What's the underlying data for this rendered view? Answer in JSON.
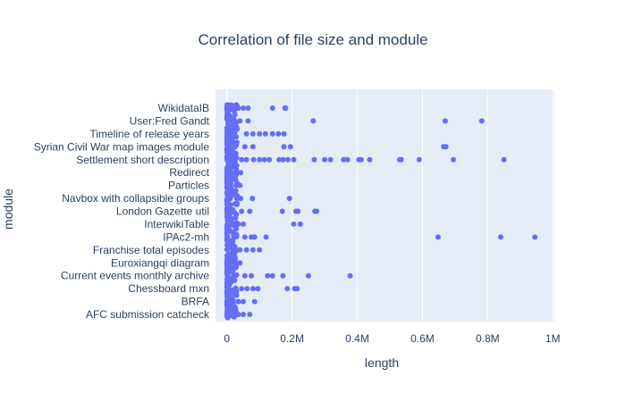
{
  "chart_data": {
    "type": "scatter",
    "title": "Correlation of file size and module",
    "xlabel": "length",
    "ylabel": "module",
    "xlim": [
      -35000,
      1005000
    ],
    "x_ticks": [
      {
        "value": 0,
        "label": "0"
      },
      {
        "value": 200000,
        "label": "0.2M"
      },
      {
        "value": 400000,
        "label": "0.4M"
      },
      {
        "value": 600000,
        "label": "0.6M"
      },
      {
        "value": 800000,
        "label": "0.8M"
      },
      {
        "value": 1000000,
        "label": "1M"
      }
    ],
    "categories": [
      "AFC submission catcheck",
      "BRFA",
      "Chessboard mxn",
      "Current events monthly archive",
      "Euroxiangqi diagram",
      "Franchise total episodes",
      "IPAc2-mh",
      "InterwikiTable",
      "London Gazette util",
      "Navbox with collapsible groups",
      "Particles",
      "Redirect",
      "Settlement short description",
      "Syrian Civil War map images module",
      "Timeline of release years",
      "User:Fred Gandt",
      "WikidataIB"
    ],
    "grid": true,
    "marker_color": "#636efa",
    "plot_bg": "#e5ecf6",
    "points": [
      {
        "module": "WikidataIB",
        "length": 140000
      },
      {
        "module": "WikidataIB",
        "length": 178000
      },
      {
        "module": "WikidataIB",
        "length": 180000
      },
      {
        "module": "WikidataIB",
        "length": 65000
      },
      {
        "module": "WikidataIB",
        "length": 50000
      },
      {
        "module": "WikidataIB",
        "length": 35000
      },
      {
        "module": "User:Fred Gandt",
        "length": 265000
      },
      {
        "module": "User:Fred Gandt",
        "length": 670000
      },
      {
        "module": "User:Fred Gandt",
        "length": 782000
      },
      {
        "module": "User:Fred Gandt",
        "length": 65000
      },
      {
        "module": "User:Fred Gandt",
        "length": 40000
      },
      {
        "module": "Timeline of release years",
        "length": 80000
      },
      {
        "module": "Timeline of release years",
        "length": 100000
      },
      {
        "module": "Timeline of release years",
        "length": 118000
      },
      {
        "module": "Timeline of release years",
        "length": 140000
      },
      {
        "module": "Timeline of release years",
        "length": 158000
      },
      {
        "module": "Timeline of release years",
        "length": 175000
      },
      {
        "module": "Timeline of release years",
        "length": 60000
      },
      {
        "module": "Syrian Civil War map images module",
        "length": 195000
      },
      {
        "module": "Syrian Civil War map images module",
        "length": 175000
      },
      {
        "module": "Syrian Civil War map images module",
        "length": 665000
      },
      {
        "module": "Syrian Civil War map images module",
        "length": 672000
      },
      {
        "module": "Syrian Civil War map images module",
        "length": 80000
      },
      {
        "module": "Syrian Civil War map images module",
        "length": 55000
      },
      {
        "module": "Settlement short description",
        "length": 82000
      },
      {
        "module": "Settlement short description",
        "length": 100000
      },
      {
        "module": "Settlement short description",
        "length": 115000
      },
      {
        "module": "Settlement short description",
        "length": 130000
      },
      {
        "module": "Settlement short description",
        "length": 160000
      },
      {
        "module": "Settlement short description",
        "length": 172000
      },
      {
        "module": "Settlement short description",
        "length": 187000
      },
      {
        "module": "Settlement short description",
        "length": 205000
      },
      {
        "module": "Settlement short description",
        "length": 268000
      },
      {
        "module": "Settlement short description",
        "length": 300000
      },
      {
        "module": "Settlement short description",
        "length": 318000
      },
      {
        "module": "Settlement short description",
        "length": 358000
      },
      {
        "module": "Settlement short description",
        "length": 370000
      },
      {
        "module": "Settlement short description",
        "length": 405000
      },
      {
        "module": "Settlement short description",
        "length": 412000
      },
      {
        "module": "Settlement short description",
        "length": 438000
      },
      {
        "module": "Settlement short description",
        "length": 530000
      },
      {
        "module": "Settlement short description",
        "length": 535000
      },
      {
        "module": "Settlement short description",
        "length": 590000
      },
      {
        "module": "Settlement short description",
        "length": 695000
      },
      {
        "module": "Settlement short description",
        "length": 850000
      },
      {
        "module": "Settlement short description",
        "length": 60000
      },
      {
        "module": "Settlement short description",
        "length": 45000
      },
      {
        "module": "Redirect",
        "length": 42000
      },
      {
        "module": "Redirect",
        "length": 30000
      },
      {
        "module": "Particles",
        "length": 40000
      },
      {
        "module": "Particles",
        "length": 28000
      },
      {
        "module": "Navbox with collapsible groups",
        "length": 78000
      },
      {
        "module": "Navbox with collapsible groups",
        "length": 192000
      },
      {
        "module": "Navbox with collapsible groups",
        "length": 30000
      },
      {
        "module": "Navbox with collapsible groups",
        "length": 42000
      },
      {
        "module": "London Gazette util",
        "length": 70000
      },
      {
        "module": "London Gazette util",
        "length": 170000
      },
      {
        "module": "London Gazette util",
        "length": 212000
      },
      {
        "module": "London Gazette util",
        "length": 218000
      },
      {
        "module": "London Gazette util",
        "length": 270000
      },
      {
        "module": "London Gazette util",
        "length": 275000
      },
      {
        "module": "London Gazette util",
        "length": 45000
      },
      {
        "module": "InterwikiTable",
        "length": 205000
      },
      {
        "module": "InterwikiTable",
        "length": 225000
      },
      {
        "module": "InterwikiTable",
        "length": 50000
      },
      {
        "module": "InterwikiTable",
        "length": 35000
      },
      {
        "module": "IPAc2-mh",
        "length": 75000
      },
      {
        "module": "IPAc2-mh",
        "length": 85000
      },
      {
        "module": "IPAc2-mh",
        "length": 120000
      },
      {
        "module": "IPAc2-mh",
        "length": 648000
      },
      {
        "module": "IPAc2-mh",
        "length": 840000
      },
      {
        "module": "IPAc2-mh",
        "length": 945000
      },
      {
        "module": "IPAc2-mh",
        "length": 55000
      },
      {
        "module": "Franchise total episodes",
        "length": 80000
      },
      {
        "module": "Franchise total episodes",
        "length": 100000
      },
      {
        "module": "Franchise total episodes",
        "length": 60000
      },
      {
        "module": "Franchise total episodes",
        "length": 40000
      },
      {
        "module": "Euroxiangqi diagram",
        "length": 40000
      },
      {
        "module": "Euroxiangqi diagram",
        "length": 28000
      },
      {
        "module": "Current events monthly archive",
        "length": 75000
      },
      {
        "module": "Current events monthly archive",
        "length": 125000
      },
      {
        "module": "Current events monthly archive",
        "length": 140000
      },
      {
        "module": "Current events monthly archive",
        "length": 172000
      },
      {
        "module": "Current events monthly archive",
        "length": 250000
      },
      {
        "module": "Current events monthly archive",
        "length": 378000
      },
      {
        "module": "Current events monthly archive",
        "length": 55000
      },
      {
        "module": "Chessboard mxn",
        "length": 62000
      },
      {
        "module": "Chessboard mxn",
        "length": 80000
      },
      {
        "module": "Chessboard mxn",
        "length": 95000
      },
      {
        "module": "Chessboard mxn",
        "length": 185000
      },
      {
        "module": "Chessboard mxn",
        "length": 208000
      },
      {
        "module": "Chessboard mxn",
        "length": 215000
      },
      {
        "module": "Chessboard mxn",
        "length": 45000
      },
      {
        "module": "BRFA",
        "length": 85000
      },
      {
        "module": "BRFA",
        "length": 50000
      },
      {
        "module": "BRFA",
        "length": 35000
      },
      {
        "module": "AFC submission catcheck",
        "length": 70000
      },
      {
        "module": "AFC submission catcheck",
        "length": 50000
      },
      {
        "module": "AFC submission catcheck",
        "length": 35000
      }
    ]
  }
}
